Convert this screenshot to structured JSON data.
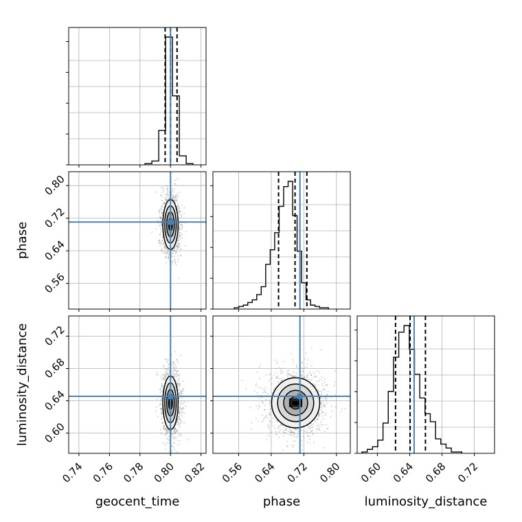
{
  "chart_data": {
    "type": "corner",
    "parameters": [
      "geocent_time",
      "phase",
      "luminosity_distance"
    ],
    "axis_labels": {
      "geocent_time": "geocent_time",
      "phase": "phase",
      "luminosity_distance": "luminosity_distance"
    },
    "ranges": {
      "geocent_time": [
        0.7333,
        0.8233
      ],
      "phase": [
        0.497,
        0.834
      ],
      "luminosity_distance": [
        0.575,
        0.745
      ]
    },
    "ticks": {
      "geocent_time": [
        "0.74",
        "0.76",
        "0.78",
        "0.80",
        "0.82"
      ],
      "phase": [
        "0.56",
        "0.64",
        "0.72",
        "0.80"
      ],
      "luminosity_distance": [
        "0.60",
        "0.64",
        "0.68",
        "0.72"
      ]
    },
    "truths": {
      "geocent_time": 0.8,
      "phase": 0.7105,
      "luminosity_distance": 0.6455
    },
    "quantiles": {
      "geocent_time": [
        0.7965,
        0.8,
        0.8043
      ],
      "phase": [
        0.658,
        0.6985,
        0.7275
      ],
      "luminosity_distance": [
        0.6225,
        0.6405,
        0.6595
      ]
    },
    "histograms": {
      "geocent_time": {
        "edges": [
          0.7833,
          0.7878,
          0.7923,
          0.7968,
          0.8013,
          0.8058,
          0.8103,
          0.8148
        ],
        "counts": [
          0.01,
          0.03,
          0.27,
          1.0,
          0.54,
          0.07,
          0.01
        ]
      },
      "phase": {
        "edges": [
          0.5495,
          0.5605,
          0.5715,
          0.5825,
          0.5935,
          0.6045,
          0.6155,
          0.6265,
          0.6375,
          0.6485,
          0.6595,
          0.6705,
          0.6815,
          0.6925,
          0.7035,
          0.7145,
          0.7255,
          0.7365,
          0.7475,
          0.7585,
          0.7695,
          0.7805
        ],
        "counts": [
          0.01,
          0.02,
          0.03,
          0.05,
          0.07,
          0.11,
          0.17,
          0.34,
          0.45,
          0.58,
          0.78,
          0.93,
          0.97,
          0.71,
          0.44,
          0.2,
          0.07,
          0.03,
          0.02,
          0.01,
          0.01
        ]
      },
      "luminosity_distance": {
        "edges": [
          0.581,
          0.5875,
          0.594,
          0.6005,
          0.607,
          0.6135,
          0.62,
          0.6265,
          0.633,
          0.6395,
          0.646,
          0.6525,
          0.659,
          0.6655,
          0.672,
          0.6785,
          0.685,
          0.6915,
          0.698,
          0.7045
        ],
        "counts": [
          0.01,
          0.03,
          0.05,
          0.1,
          0.23,
          0.47,
          0.73,
          0.92,
          0.97,
          0.79,
          0.6,
          0.42,
          0.3,
          0.24,
          0.11,
          0.07,
          0.04,
          0.01,
          0.01
        ]
      }
    },
    "densities_2d": [
      {
        "x": "geocent_time",
        "y": "phase",
        "center": [
          0.8,
          0.7045
        ],
        "sigma": [
          0.0025,
          0.0305
        ],
        "contour_levels_sigma": [
          0.5,
          1.0,
          1.5,
          2.0
        ]
      },
      {
        "x": "geocent_time",
        "y": "luminosity_distance",
        "center": [
          0.8,
          0.6375
        ],
        "sigma": [
          0.0025,
          0.0165
        ],
        "contour_levels_sigma": [
          0.5,
          1.0,
          1.5,
          2.0
        ]
      },
      {
        "x": "phase",
        "y": "luminosity_distance",
        "center": [
          0.7,
          0.6375
        ],
        "sigma": [
          0.0295,
          0.0155
        ],
        "contour_levels_sigma": [
          0.5,
          1.0,
          1.5,
          2.0
        ]
      }
    ],
    "colors": {
      "truth": "#4682b4",
      "histogram": "#000000",
      "grid": "#b0b0b0",
      "contour": "#000000"
    },
    "grid": true
  }
}
